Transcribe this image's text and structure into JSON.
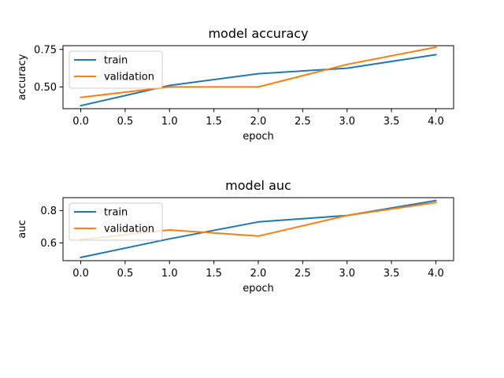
{
  "chart_data": [
    {
      "type": "line",
      "title": "model accuracy",
      "xlabel": "epoch",
      "ylabel": "accuracy",
      "xlim": [
        -0.2,
        4.2
      ],
      "ylim": [
        0.355,
        0.775
      ],
      "xticks": [
        0.0,
        0.5,
        1.0,
        1.5,
        2.0,
        2.5,
        3.0,
        3.5,
        4.0
      ],
      "xtick_labels": [
        "0.0",
        "0.5",
        "1.0",
        "1.5",
        "2.0",
        "2.5",
        "3.0",
        "3.5",
        "4.0"
      ],
      "yticks": [
        0.5,
        0.75
      ],
      "ytick_labels": [
        "0.50",
        "0.75"
      ],
      "legend": "upper-left",
      "x": [
        0,
        1,
        2,
        3,
        4
      ],
      "series": [
        {
          "name": "train",
          "color": "#1f77b4",
          "values": [
            0.375,
            0.51,
            0.588,
            0.625,
            0.715
          ]
        },
        {
          "name": "validation",
          "color": "#ff7f0e",
          "values": [
            0.43,
            0.5,
            0.5,
            0.65,
            0.765
          ]
        }
      ]
    },
    {
      "type": "line",
      "title": "model auc",
      "xlabel": "epoch",
      "ylabel": "auc",
      "xlim": [
        -0.2,
        4.2
      ],
      "ylim": [
        0.49,
        0.88
      ],
      "xticks": [
        0.0,
        0.5,
        1.0,
        1.5,
        2.0,
        2.5,
        3.0,
        3.5,
        4.0
      ],
      "xtick_labels": [
        "0.0",
        "0.5",
        "1.0",
        "1.5",
        "2.0",
        "2.5",
        "3.0",
        "3.5",
        "4.0"
      ],
      "yticks": [
        0.6,
        0.8
      ],
      "ytick_labels": [
        "0.6",
        "0.8"
      ],
      "legend": "upper-left",
      "x": [
        0,
        1,
        2,
        3,
        4
      ],
      "series": [
        {
          "name": "train",
          "color": "#1f77b4",
          "values": [
            0.51,
            0.625,
            0.73,
            0.77,
            0.862
          ]
        },
        {
          "name": "validation",
          "color": "#ff7f0e",
          "values": [
            0.62,
            0.68,
            0.642,
            0.77,
            0.85
          ]
        }
      ]
    }
  ]
}
